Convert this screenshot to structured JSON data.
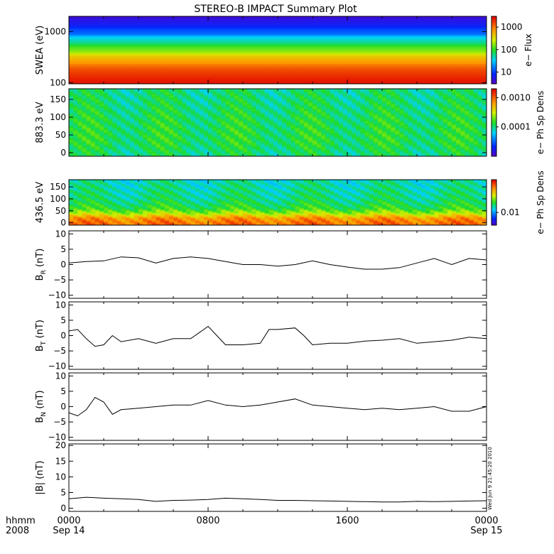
{
  "title": "STEREO-B IMPACT Summary Plot",
  "stamp": "Wed Jun  9 21:45:20 2010",
  "time_axis": {
    "row1": "hhmm",
    "row2": "2008",
    "ticks": [
      {
        "hour": 0,
        "label": "0000",
        "sub": "Sep 14"
      },
      {
        "hour": 8,
        "label": "0800",
        "sub": ""
      },
      {
        "hour": 16,
        "label": "1600",
        "sub": ""
      },
      {
        "hour": 24,
        "label": "0000",
        "sub": "Sep 15"
      }
    ]
  },
  "chart_data": [
    {
      "type": "heatmap",
      "id": "swea",
      "ylabel": "SWEA (eV)",
      "ylog": true,
      "ylim": [
        95,
        2000
      ],
      "yticks": [
        {
          "v": 100,
          "t": "100"
        },
        {
          "v": 1000,
          "t": "1000"
        }
      ],
      "colorbar": {
        "label": "e− Flux",
        "log": true,
        "range": [
          3,
          3000
        ],
        "ticks": [
          {
            "v": 10,
            "t": "10"
          },
          {
            "v": 100,
            "t": "100"
          },
          {
            "v": 1000,
            "t": "1000"
          }
        ]
      },
      "x_hours": [
        0,
        24
      ],
      "profile": {
        "y": [
          100,
          150,
          250,
          400,
          600,
          900,
          1300,
          2000
        ],
        "flux": [
          2500,
          1800,
          700,
          180,
          60,
          15,
          7,
          4
        ]
      }
    },
    {
      "type": "heatmap",
      "id": "pad883",
      "ylabel": "883.3 eV",
      "ylog": false,
      "ylim": [
        -10,
        180
      ],
      "yticks": [
        {
          "v": 0,
          "t": "0"
        },
        {
          "v": 50,
          "t": "50"
        },
        {
          "v": 100,
          "t": "100"
        },
        {
          "v": 150,
          "t": "150"
        }
      ],
      "colorbar": {
        "label": "e− Ph Sp Dens",
        "log": true,
        "range": [
          1e-05,
          0.002
        ],
        "ticks": [
          {
            "v": 0.0001,
            "t": "0.0001"
          },
          {
            "v": 0.001,
            "t": "0.0010"
          }
        ]
      },
      "x_hours": [
        0,
        24
      ],
      "profile": {
        "y": [
          0,
          30,
          60,
          100,
          140,
          180
        ],
        "level": [
          0.45,
          0.48,
          0.48,
          0.47,
          0.45,
          0.44
        ]
      }
    },
    {
      "type": "heatmap",
      "id": "pad436",
      "ylabel": "436.5 eV",
      "ylog": false,
      "ylim": [
        -10,
        180
      ],
      "yticks": [
        {
          "v": 0,
          "t": "0"
        },
        {
          "v": 50,
          "t": "50"
        },
        {
          "v": 100,
          "t": "100"
        },
        {
          "v": 150,
          "t": "150"
        }
      ],
      "colorbar": {
        "label": "e− Ph Sp Dens",
        "log": true,
        "range": [
          0.005,
          0.06
        ],
        "ticks": [
          {
            "v": 0.01,
            "t": "0.01"
          }
        ]
      },
      "x_hours": [
        0,
        24
      ],
      "profile": {
        "y": [
          0,
          20,
          40,
          60,
          100,
          140,
          180
        ],
        "level": [
          0.85,
          0.8,
          0.62,
          0.5,
          0.44,
          0.42,
          0.4
        ]
      }
    },
    {
      "type": "line",
      "id": "br",
      "ylabel_main": "B",
      "ylabel_sub": "R",
      "ylabel_unit": " (nT)",
      "ylim": [
        -11,
        11
      ],
      "yticks": [
        {
          "v": -10,
          "t": "−10"
        },
        {
          "v": -5,
          "t": "−5"
        },
        {
          "v": 0,
          "t": "0"
        },
        {
          "v": 5,
          "t": "5"
        },
        {
          "v": 10,
          "t": "10"
        }
      ],
      "x": [
        0,
        1,
        2,
        3,
        4,
        5,
        6,
        7,
        8,
        9,
        10,
        11,
        12,
        13,
        14,
        15,
        16,
        17,
        18,
        19,
        20,
        21,
        22,
        23,
        24
      ],
      "y": [
        0.5,
        1,
        1.2,
        2.5,
        2.2,
        0.5,
        2,
        2.5,
        2,
        1,
        0,
        0,
        -0.5,
        0,
        1.2,
        0,
        -0.8,
        -1.5,
        -1.5,
        -1,
        0.5,
        2,
        0,
        2,
        1.5
      ]
    },
    {
      "type": "line",
      "id": "bt",
      "ylabel_main": "B",
      "ylabel_sub": "T",
      "ylabel_unit": " (nT)",
      "ylim": [
        -11,
        11
      ],
      "yticks": [
        {
          "v": -10,
          "t": "−10"
        },
        {
          "v": -5,
          "t": "−5"
        },
        {
          "v": 0,
          "t": "0"
        },
        {
          "v": 5,
          "t": "5"
        },
        {
          "v": 10,
          "t": "10"
        }
      ],
      "x": [
        0,
        0.5,
        1,
        1.5,
        2,
        2.5,
        3,
        4,
        5,
        6,
        7,
        7.5,
        8,
        8.5,
        9,
        10,
        11,
        11.5,
        12,
        13,
        13.5,
        14,
        15,
        16,
        17,
        18,
        19,
        20,
        21,
        22,
        23,
        24
      ],
      "y": [
        1.5,
        2,
        -1,
        -3.5,
        -3,
        0,
        -2,
        -1,
        -2.5,
        -1,
        -1,
        1,
        3,
        0,
        -3,
        -3,
        -2.5,
        2,
        2,
        2.5,
        0,
        -3,
        -2.5,
        -2.5,
        -1.8,
        -1.5,
        -1,
        -2.5,
        -2,
        -1.5,
        -0.5,
        -1
      ]
    },
    {
      "type": "line",
      "id": "bn",
      "ylabel_main": "B",
      "ylabel_sub": "N",
      "ylabel_unit": " (nT)",
      "ylim": [
        -11,
        11
      ],
      "yticks": [
        {
          "v": -10,
          "t": "−10"
        },
        {
          "v": -5,
          "t": "−5"
        },
        {
          "v": 0,
          "t": "0"
        },
        {
          "v": 5,
          "t": "5"
        },
        {
          "v": 10,
          "t": "10"
        }
      ],
      "x": [
        0,
        0.5,
        1,
        1.5,
        2,
        2.5,
        3,
        4,
        5,
        6,
        7,
        8,
        9,
        10,
        11,
        12,
        13,
        14,
        15,
        16,
        17,
        18,
        19,
        20,
        21,
        22,
        23,
        24
      ],
      "y": [
        -2,
        -3,
        -1,
        3,
        1.5,
        -2.5,
        -1,
        -0.5,
        0,
        0.5,
        0.5,
        2,
        0.5,
        0,
        0.5,
        1.5,
        2.5,
        0.5,
        0,
        -0.5,
        -1,
        -0.5,
        -1,
        -0.5,
        0,
        -1.5,
        -1.5,
        0
      ]
    },
    {
      "type": "line",
      "id": "bmag",
      "ylabel_main": "|B| (nT)",
      "ylim": [
        -1,
        20.5
      ],
      "yticks": [
        {
          "v": 0,
          "t": "0"
        },
        {
          "v": 5,
          "t": "5"
        },
        {
          "v": 10,
          "t": "10"
        },
        {
          "v": 15,
          "t": "15"
        },
        {
          "v": 20,
          "t": "20"
        }
      ],
      "x": [
        0,
        1,
        2,
        3,
        4,
        5,
        6,
        7,
        8,
        9,
        10,
        11,
        12,
        13,
        14,
        15,
        16,
        17,
        18,
        19,
        20,
        21,
        22,
        23,
        24
      ],
      "y": [
        3,
        3.5,
        3.2,
        3,
        2.8,
        2.2,
        2.5,
        2.6,
        2.8,
        3.2,
        3,
        2.8,
        2.5,
        2.5,
        2.4,
        2.3,
        2.2,
        2.1,
        2,
        2,
        2.2,
        2.1,
        2.2,
        2.3,
        2.4
      ]
    }
  ]
}
